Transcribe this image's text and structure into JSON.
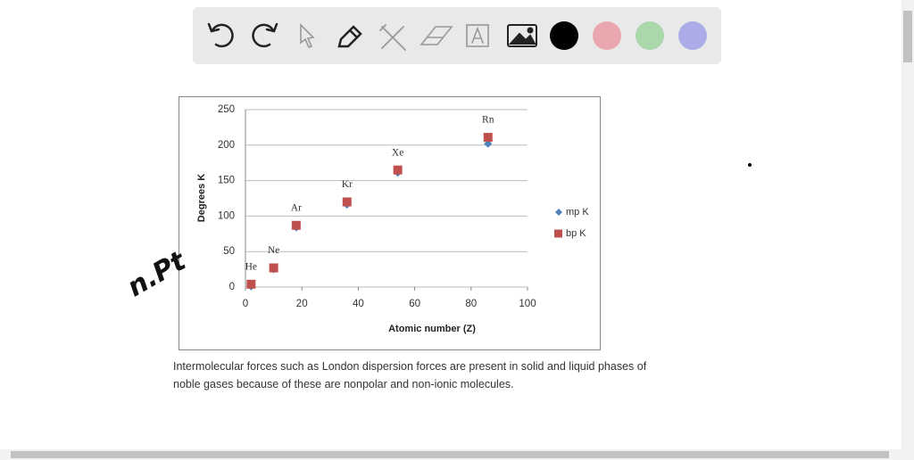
{
  "chart_data": {
    "type": "scatter",
    "x_label": "Atomic number (Z)",
    "y_label": "Degrees K",
    "x": [
      2,
      10,
      18,
      36,
      54,
      86
    ],
    "point_labels": [
      "He",
      "Ne",
      "Ar",
      "Kr",
      "Xe",
      "Rn"
    ],
    "series": [
      {
        "name": "mp K",
        "color": "#4f81bd",
        "marker": "diamond",
        "values": [
          1,
          25,
          84,
          116,
          161,
          202
        ]
      },
      {
        "name": "bp K",
        "color": "#c0504d",
        "marker": "square",
        "values": [
          4,
          27,
          87,
          120,
          165,
          211
        ]
      }
    ],
    "xlim": [
      0,
      100
    ],
    "xticks": [
      0,
      20,
      40,
      60,
      80,
      100
    ],
    "ylim": [
      0,
      250
    ],
    "yticks": [
      0,
      50,
      100,
      150,
      200,
      250
    ],
    "grid": true,
    "legend": "right"
  },
  "caption": [
    "Intermolecular forces such as London dispersion forces are present in solid and liquid phases of",
    "noble gases because of these are nonpolar and non-ionic molecules."
  ],
  "handwriting": "n.Pt"
}
